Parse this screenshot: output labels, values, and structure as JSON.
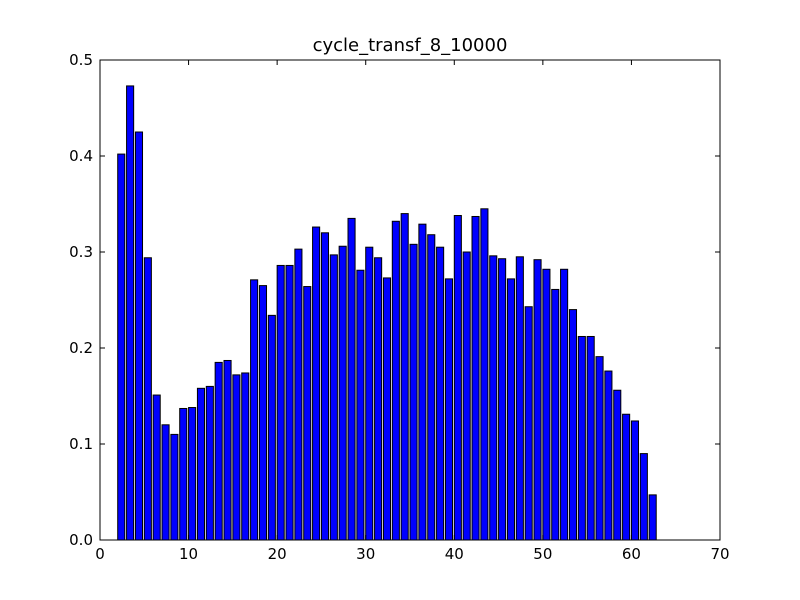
{
  "chart_data": {
    "type": "bar",
    "title": "cycle_transf_8_10000",
    "xlabel": "",
    "ylabel": "",
    "xlim": [
      0,
      70
    ],
    "ylim": [
      0,
      0.5
    ],
    "xticks": [
      0,
      10,
      20,
      30,
      40,
      50,
      60,
      70
    ],
    "yticks": [
      0.0,
      0.1,
      0.2,
      0.3,
      0.4,
      0.5
    ],
    "xtick_labels": [
      "0",
      "10",
      "20",
      "30",
      "40",
      "50",
      "60",
      "70"
    ],
    "ytick_labels": [
      "0.0",
      "0.1",
      "0.2",
      "0.3",
      "0.4",
      "0.5"
    ],
    "grid": false,
    "bar_color": "#0000ff",
    "edge_color": "#000000",
    "x": [
      2,
      3,
      4,
      5,
      6,
      7,
      8,
      9,
      10,
      11,
      12,
      13,
      14,
      15,
      16,
      17,
      18,
      19,
      20,
      21,
      22,
      23,
      24,
      25,
      26,
      27,
      28,
      29,
      30,
      31,
      32,
      33,
      34,
      35,
      36,
      37,
      38,
      39,
      40,
      41,
      42,
      43,
      44,
      45,
      46,
      47,
      48,
      49,
      50,
      51,
      52,
      53,
      54,
      55,
      56,
      57,
      58,
      59,
      60,
      61,
      62
    ],
    "values": [
      0.402,
      0.473,
      0.425,
      0.294,
      0.151,
      0.12,
      0.11,
      0.137,
      0.138,
      0.158,
      0.16,
      0.185,
      0.187,
      0.172,
      0.174,
      0.271,
      0.265,
      0.234,
      0.286,
      0.286,
      0.303,
      0.264,
      0.326,
      0.32,
      0.297,
      0.306,
      0.335,
      0.281,
      0.305,
      0.294,
      0.273,
      0.332,
      0.34,
      0.308,
      0.329,
      0.318,
      0.305,
      0.272,
      0.338,
      0.3,
      0.337,
      0.345,
      0.296,
      0.293,
      0.272,
      0.295,
      0.243,
      0.292,
      0.282,
      0.261,
      0.282,
      0.24,
      0.212,
      0.212,
      0.191,
      0.176,
      0.156,
      0.131,
      0.124,
      0.09,
      0.047
    ]
  }
}
